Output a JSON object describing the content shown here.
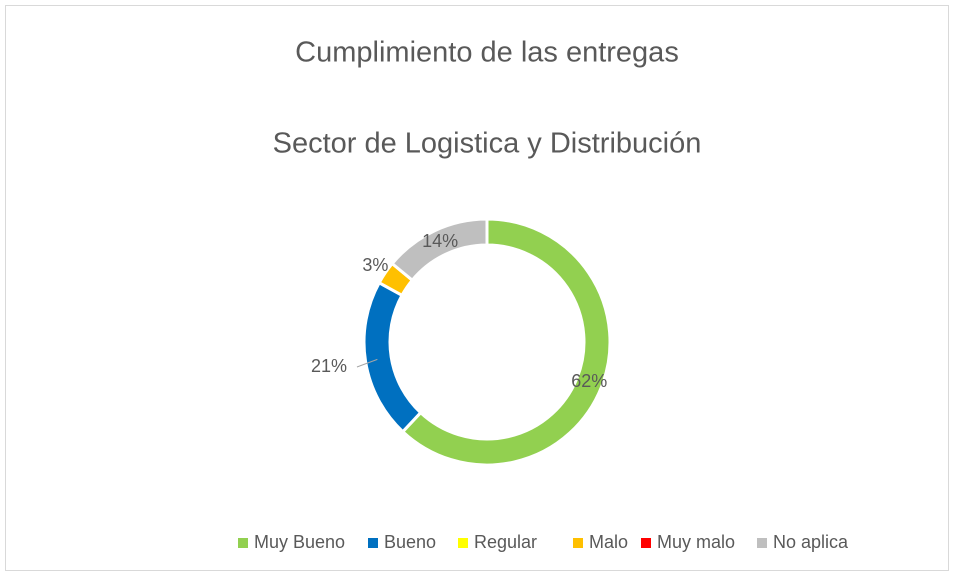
{
  "chart_data": {
    "type": "donut",
    "title": "Cumplimiento de las entregas",
    "subtitle": "Sector de Logistica y Distribución",
    "categories": [
      "Muy Bueno",
      "Bueno",
      "Regular",
      "Malo",
      "Muy malo",
      "No aplica"
    ],
    "values": [
      62,
      21,
      0,
      3,
      0,
      14
    ],
    "value_labels": [
      "62%",
      "21%",
      null,
      "3%",
      null,
      "14%"
    ],
    "colors": [
      "#92d050",
      "#0070c0",
      "#ffff00",
      "#ffc000",
      "#ff0000",
      "#bfbfbf"
    ],
    "legend": "bottom"
  }
}
